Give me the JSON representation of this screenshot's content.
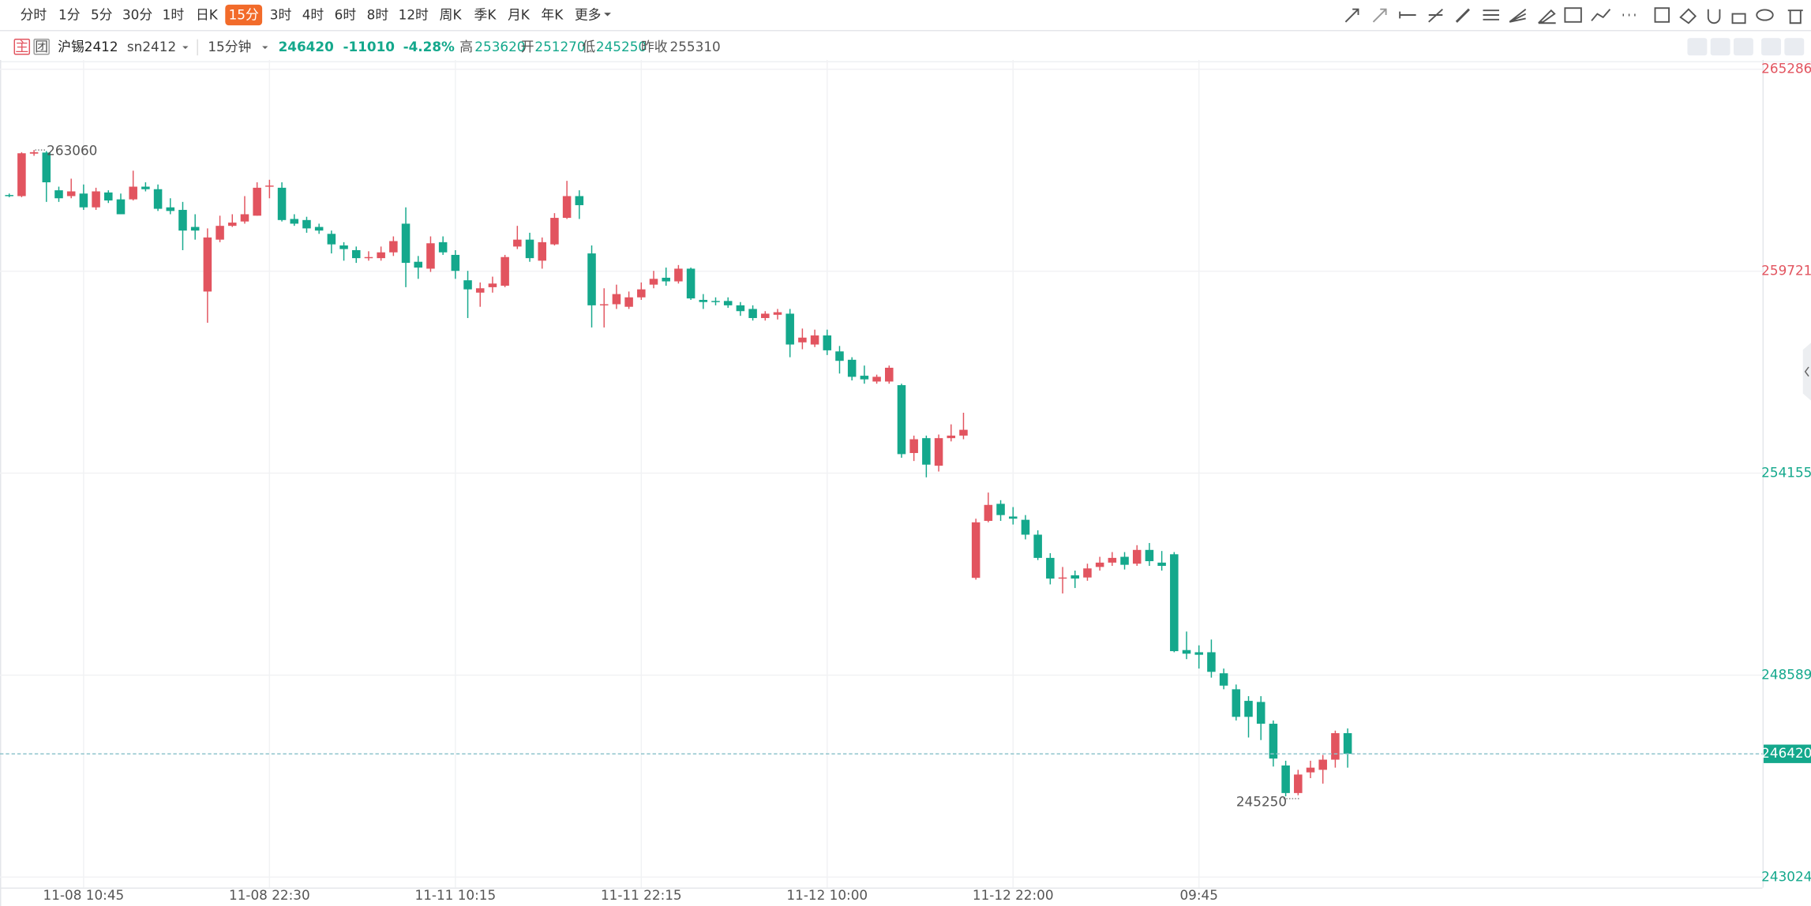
{
  "toolbar": {
    "periods": [
      {
        "label": "分时"
      },
      {
        "label": "1分"
      },
      {
        "label": "5分"
      },
      {
        "label": "30分"
      },
      {
        "label": "1时"
      },
      {
        "label": "日K"
      },
      {
        "label": "15分",
        "active": true
      },
      {
        "label": "3时"
      },
      {
        "label": "4时"
      },
      {
        "label": "6时"
      },
      {
        "label": "8时"
      },
      {
        "label": "12时"
      },
      {
        "label": "周K"
      },
      {
        "label": "季K"
      },
      {
        "label": "月K"
      },
      {
        "label": "年K"
      },
      {
        "label": "更多"
      }
    ]
  },
  "header": {
    "badges": [
      "主",
      "团"
    ],
    "name": "沪锡2412",
    "code": "sn2412",
    "period": "15分钟",
    "last": 246420,
    "change": -11010,
    "change_pct": "-4.28%",
    "high_label": "高",
    "high": 253620,
    "open_label": "开",
    "open": 251270,
    "low_label": "低",
    "low": 245250,
    "prev_close_label": "昨收",
    "prev_close": 255310
  },
  "chart_data": {
    "type": "candlestick",
    "up_color": "#e2545f",
    "down_color": "#14a88c",
    "grid": true,
    "categories": [
      null,
      null,
      null,
      null,
      null,
      null,
      "11-08 10:45",
      null,
      null,
      null,
      null,
      null,
      null,
      null,
      null,
      null,
      null,
      null,
      null,
      null,
      null,
      "11-08 22:30",
      null,
      null,
      null,
      null,
      null,
      null,
      null,
      null,
      null,
      null,
      null,
      null,
      null,
      null,
      "11-11 10:15",
      null,
      null,
      null,
      null,
      null,
      null,
      null,
      null,
      null,
      null,
      null,
      null,
      null,
      null,
      "11-11 22:15",
      null,
      null,
      null,
      null,
      null,
      null,
      null,
      null,
      null,
      null,
      null,
      null,
      null,
      null,
      "11-12 10:00",
      null,
      null,
      null,
      null,
      null,
      null,
      null,
      null,
      null,
      null,
      null,
      null,
      null,
      null,
      "11-12 22:00",
      null,
      null,
      null,
      null,
      null,
      null,
      null,
      null,
      null,
      null,
      null,
      null,
      null,
      null,
      "09:45",
      null,
      null,
      null,
      null,
      null,
      null,
      null,
      null,
      null,
      null,
      null,
      null
    ],
    "open": [
      261820,
      261790,
      262960,
      262990,
      261950,
      261790,
      261860,
      261480,
      261890,
      261700,
      261700,
      262050,
      261980,
      261480,
      261410,
      260940,
      259160,
      260590,
      260970,
      261090,
      261250,
      262050,
      262020,
      261160,
      261130,
      260940,
      260750,
      260430,
      260300,
      260080,
      260080,
      260240,
      261030,
      259980,
      259790,
      260520,
      260170,
      259470,
      259130,
      259280,
      259320,
      260400,
      260590,
      260010,
      260460,
      261190,
      261790,
      260210,
      258780,
      258810,
      258740,
      259000,
      259350,
      259540,
      259440,
      259790,
      258930,
      258900,
      258900,
      258780,
      258680,
      258430,
      258520,
      258550,
      257760,
      257700,
      257950,
      257510,
      257280,
      256840,
      256680,
      256680,
      256580,
      254710,
      255120,
      254360,
      255120,
      255190,
      251270,
      252840,
      253310,
      252960,
      252870,
      252460,
      251820,
      251250,
      251340,
      251280,
      251570,
      251690,
      251850,
      251660,
      252040,
      251690,
      251920,
      249280,
      249220,
      249220,
      248640,
      248200,
      247880,
      247850,
      247250,
      246100,
      245340,
      245910,
      245980,
      246260,
      246990
    ],
    "high": [
      261860,
      263000,
      263060,
      263030,
      262050,
      262270,
      262110,
      262020,
      261950,
      261860,
      262490,
      262170,
      262110,
      261730,
      261630,
      261290,
      260900,
      261250,
      261290,
      261790,
      262170,
      262240,
      262170,
      261290,
      261220,
      261030,
      260840,
      260520,
      260400,
      260270,
      260400,
      260680,
      261480,
      260140,
      260680,
      260680,
      260300,
      259730,
      259410,
      259570,
      260170,
      260970,
      260780,
      260650,
      261320,
      262210,
      261950,
      260430,
      259250,
      259350,
      259160,
      259410,
      259730,
      259820,
      259890,
      259820,
      259090,
      259000,
      259000,
      258870,
      258780,
      258620,
      258680,
      258680,
      258140,
      258110,
      258110,
      257660,
      257350,
      257120,
      256870,
      257120,
      256620,
      255190,
      255190,
      255220,
      255500,
      255820,
      252900,
      253620,
      253410,
      253220,
      253000,
      252580,
      251950,
      251570,
      251470,
      251660,
      251850,
      251980,
      251980,
      252170,
      252230,
      252010,
      251980,
      249790,
      249410,
      249570,
      248770,
      248330,
      248010,
      248010,
      247340,
      246230,
      245980,
      246230,
      246390,
      247060,
      247120
    ],
    "low": [
      261760,
      261760,
      262900,
      261630,
      261630,
      261730,
      261410,
      261410,
      261600,
      261290,
      261670,
      261920,
      261380,
      261290,
      260300,
      260590,
      258300,
      260520,
      260940,
      261030,
      261250,
      261730,
      261090,
      260970,
      260780,
      260750,
      260210,
      260010,
      259950,
      260010,
      260010,
      260140,
      259280,
      259510,
      259700,
      260170,
      259510,
      258430,
      258740,
      259130,
      259280,
      260330,
      259980,
      259790,
      260430,
      261160,
      261160,
      258170,
      258170,
      258680,
      258680,
      258930,
      259250,
      259320,
      259380,
      258930,
      258680,
      258780,
      258710,
      258490,
      258360,
      258360,
      258390,
      257350,
      257570,
      257630,
      257410,
      256900,
      256710,
      256620,
      256620,
      256620,
      254580,
      254490,
      254040,
      254200,
      255030,
      255090,
      251220,
      252800,
      252840,
      252740,
      252330,
      251760,
      251090,
      250840,
      250990,
      251190,
      251470,
      251600,
      251500,
      251600,
      251600,
      251470,
      249220,
      249030,
      248770,
      248520,
      248200,
      247340,
      246870,
      246800,
      246070,
      245250,
      245280,
      245750,
      245600,
      246040,
      246040
    ],
    "close": [
      261790,
      262970,
      263000,
      262170,
      261730,
      261920,
      261480,
      261920,
      261670,
      261290,
      262050,
      261980,
      261440,
      261380,
      260840,
      260840,
      260650,
      260970,
      261060,
      261290,
      262020,
      262080,
      261130,
      261030,
      260900,
      260840,
      260460,
      260330,
      260080,
      260110,
      260240,
      260550,
      259950,
      259820,
      260490,
      260240,
      259730,
      259220,
      259250,
      259380,
      260110,
      260590,
      260080,
      260520,
      261190,
      261790,
      261540,
      258780,
      258810,
      259090,
      259000,
      259220,
      259510,
      259440,
      259790,
      258970,
      258870,
      258870,
      258780,
      258620,
      258430,
      258550,
      258590,
      257700,
      257890,
      257950,
      257540,
      257250,
      256810,
      256740,
      256810,
      257060,
      254680,
      255090,
      254390,
      255120,
      255190,
      255350,
      252800,
      253280,
      253000,
      252900,
      252460,
      251820,
      251250,
      251280,
      251250,
      251530,
      251690,
      251820,
      251630,
      252040,
      251730,
      251600,
      249250,
      249180,
      249150,
      248680,
      248300,
      247440,
      247440,
      247250,
      246290,
      245340,
      245850,
      246040,
      246260,
      246990,
      246420
    ],
    "ylim": [
      242736,
      265540
    ],
    "yticks": [
      265286,
      259721,
      254155,
      248589,
      243024
    ]
  }
}
